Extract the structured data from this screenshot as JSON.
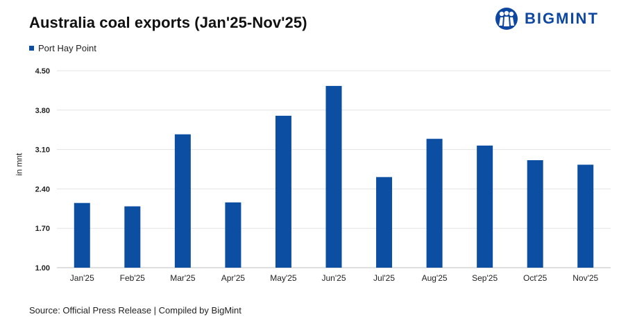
{
  "title": "Australia coal exports (Jan'25-Nov'25)",
  "brand": {
    "name": "BIGMINT",
    "color": "#0d47a1"
  },
  "legend": {
    "label": "Port Hay Point",
    "color": "#0b4ea2"
  },
  "source": "Source: Official Press Release | Compiled by BigMint",
  "chart_data": {
    "type": "bar",
    "title": "Australia coal exports (Jan'25-Nov'25)",
    "ylabel": "in mnt",
    "xlabel": "",
    "categories": [
      "Jan'25",
      "Feb'25",
      "Mar'25",
      "Apr'25",
      "May'25",
      "Jun'25",
      "Jul'25",
      "Aug'25",
      "Sep'25",
      "Oct'25",
      "Nov'25"
    ],
    "series": [
      {
        "name": "Port Hay Point",
        "values": [
          2.15,
          2.09,
          3.37,
          2.16,
          3.7,
          4.23,
          2.61,
          3.29,
          3.17,
          2.91,
          2.83
        ],
        "color": "#0b4ea2"
      }
    ],
    "ylim": [
      1.0,
      4.5
    ],
    "yticks": [
      "1.00",
      "1.70",
      "2.40",
      "3.10",
      "3.80",
      "4.50"
    ],
    "grid": true,
    "legend_position": "top-left"
  }
}
